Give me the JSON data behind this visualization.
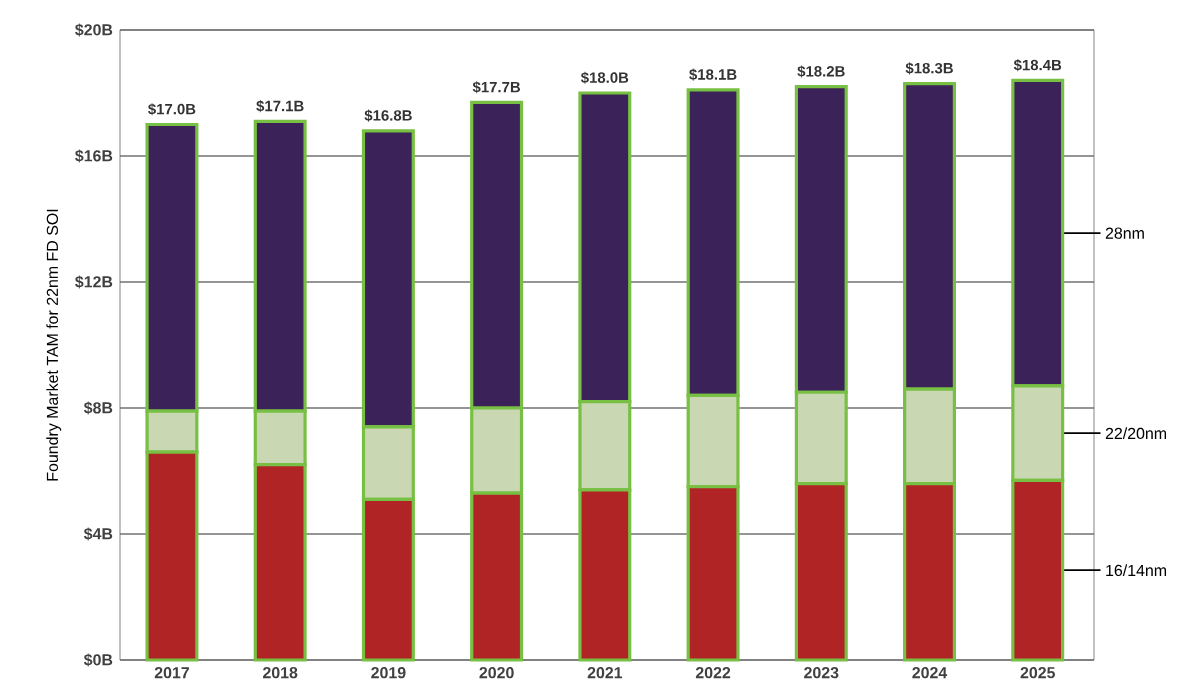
{
  "chart_data": {
    "type": "bar",
    "stacked": true,
    "ylabel": "Foundry Market TAM for 22nm FD SOI",
    "categories": [
      "2017",
      "2018",
      "2019",
      "2020",
      "2021",
      "2022",
      "2023",
      "2024",
      "2025"
    ],
    "series": [
      {
        "name": "16/14nm",
        "color": "#b02426",
        "values": [
          6.6,
          6.2,
          5.1,
          5.3,
          5.4,
          5.5,
          5.6,
          5.6,
          5.7
        ]
      },
      {
        "name": "22/20nm",
        "color": "#c9d8b3",
        "values": [
          1.3,
          1.7,
          2.3,
          2.7,
          2.8,
          2.9,
          2.9,
          3.0,
          3.0
        ]
      },
      {
        "name": "28nm",
        "color": "#3b2259",
        "values": [
          9.1,
          9.2,
          9.4,
          9.7,
          9.8,
          9.7,
          9.7,
          9.7,
          9.7
        ]
      }
    ],
    "totals": [
      "$17.0B",
      "$17.1B",
      "$16.8B",
      "$17.7B",
      "$18.0B",
      "$18.1B",
      "$18.2B",
      "$18.3B",
      "$18.4B"
    ],
    "ylim": [
      0,
      20
    ],
    "yticks": [
      {
        "value": 0,
        "label": "$0B"
      },
      {
        "value": 4,
        "label": "$4B"
      },
      {
        "value": 8,
        "label": "$8B"
      },
      {
        "value": 12,
        "label": "$12B"
      },
      {
        "value": 16,
        "label": "$16B"
      },
      {
        "value": 20,
        "label": "$20B"
      }
    ],
    "grid": "y",
    "legend": false
  }
}
